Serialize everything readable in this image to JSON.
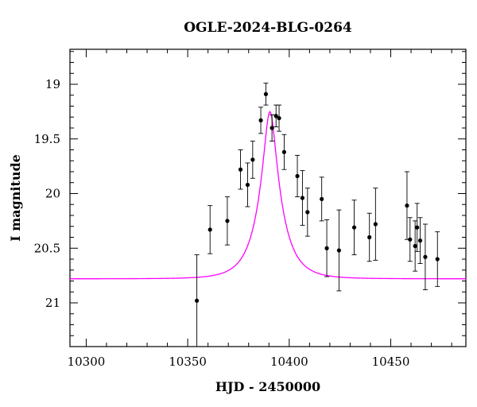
{
  "chart_data": {
    "type": "scatter",
    "title": "OGLE-2024-BLG-0264",
    "xlabel": "HJD - 2450000",
    "ylabel": "I magnitude",
    "xlim": [
      10292,
      10487
    ],
    "ylim": [
      21.4,
      18.68
    ],
    "y_inverted": true,
    "x_major_ticks": [
      10300,
      10350,
      10400,
      10450
    ],
    "x_minor_step": 10,
    "y_major_ticks": [
      19,
      19.5,
      20,
      20.5,
      21
    ],
    "y_minor_step": 0.1,
    "x_tick_labels": [
      "10300",
      "10350",
      "10400",
      "10450"
    ],
    "y_tick_labels": [
      "19",
      "19.5",
      "20",
      "20.5",
      "21"
    ],
    "series": [
      {
        "name": "observations",
        "color": "#000000",
        "points": [
          {
            "x": 10354.5,
            "y": 20.98,
            "err": 0.42
          },
          {
            "x": 10361.0,
            "y": 20.33,
            "err": 0.22
          },
          {
            "x": 10369.5,
            "y": 20.25,
            "err": 0.22
          },
          {
            "x": 10376.0,
            "y": 19.78,
            "err": 0.18
          },
          {
            "x": 10379.5,
            "y": 19.92,
            "err": 0.2
          },
          {
            "x": 10382.0,
            "y": 19.69,
            "err": 0.17
          },
          {
            "x": 10386.0,
            "y": 19.33,
            "err": 0.12
          },
          {
            "x": 10388.5,
            "y": 19.09,
            "err": 0.1
          },
          {
            "x": 10391.5,
            "y": 19.4,
            "err": 0.12
          },
          {
            "x": 10393.5,
            "y": 19.29,
            "err": 0.1
          },
          {
            "x": 10395.0,
            "y": 19.31,
            "err": 0.12
          },
          {
            "x": 10397.5,
            "y": 19.62,
            "err": 0.16
          },
          {
            "x": 10404.0,
            "y": 19.84,
            "err": 0.19
          },
          {
            "x": 10406.5,
            "y": 20.04,
            "err": 0.25
          },
          {
            "x": 10409.0,
            "y": 20.17,
            "err": 0.22
          },
          {
            "x": 10416.0,
            "y": 20.05,
            "err": 0.2
          },
          {
            "x": 10418.5,
            "y": 20.5,
            "err": 0.26
          },
          {
            "x": 10424.5,
            "y": 20.52,
            "err": 0.37
          },
          {
            "x": 10432.0,
            "y": 20.31,
            "err": 0.25
          },
          {
            "x": 10439.5,
            "y": 20.4,
            "err": 0.22
          },
          {
            "x": 10442.5,
            "y": 20.28,
            "err": 0.33
          },
          {
            "x": 10458.0,
            "y": 20.11,
            "err": 0.31
          },
          {
            "x": 10459.5,
            "y": 20.42,
            "err": 0.2
          },
          {
            "x": 10462.0,
            "y": 20.48,
            "err": 0.23
          },
          {
            "x": 10463.0,
            "y": 20.31,
            "err": 0.22
          },
          {
            "x": 10464.5,
            "y": 20.43,
            "err": 0.21
          },
          {
            "x": 10467.0,
            "y": 20.58,
            "err": 0.3
          },
          {
            "x": 10473.0,
            "y": 20.6,
            "err": 0.25
          }
        ]
      },
      {
        "name": "model",
        "type": "line",
        "color": "#ff00ff",
        "model": {
          "t0": 10390.5,
          "tE": 11.0,
          "m_base": 20.78,
          "m_peak": 19.25
        }
      }
    ]
  }
}
